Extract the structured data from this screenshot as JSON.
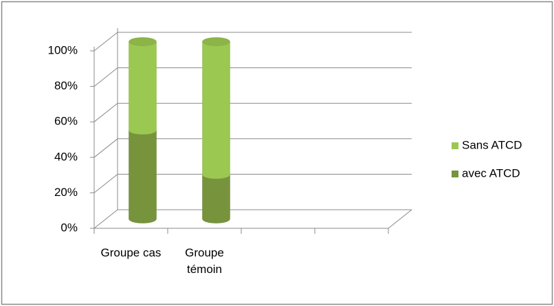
{
  "chart_data": {
    "type": "bar3d_stacked",
    "categories": [
      "Groupe cas",
      "Groupe témoin",
      null,
      null
    ],
    "series": [
      {
        "name": "avec ATCD",
        "color": "#77933c",
        "values": [
          50,
          25,
          null,
          null
        ]
      },
      {
        "name": "Sans ATCD",
        "color": "#9bc850",
        "values": [
          50,
          75,
          null,
          null
        ]
      }
    ],
    "ylim": [
      0,
      100
    ],
    "yticks": [
      {
        "value": 0,
        "label": "0%"
      },
      {
        "value": 20,
        "label": "20%"
      },
      {
        "value": 40,
        "label": "40%"
      },
      {
        "value": 60,
        "label": "60%"
      },
      {
        "value": 80,
        "label": "80%"
      },
      {
        "value": 100,
        "label": "100%"
      }
    ],
    "grid": true,
    "legend": "right"
  }
}
